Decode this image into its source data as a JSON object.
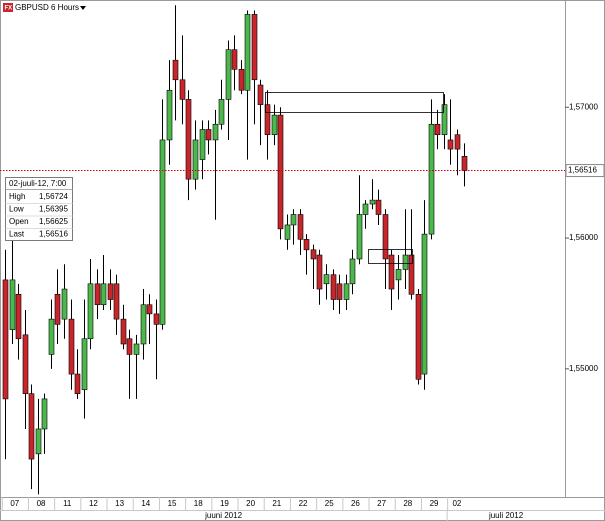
{
  "chart_data": {
    "type": "candlestick",
    "title": "GBPUSD 6 Hours",
    "categories": [
      "07",
      null,
      null,
      null,
      "08",
      null,
      null,
      null,
      "11",
      null,
      null,
      null,
      "12",
      null,
      null,
      null,
      "13",
      null,
      null,
      null,
      "14",
      null,
      null,
      null,
      "15",
      null,
      null,
      null,
      "18",
      null,
      null,
      null,
      "19",
      null,
      null,
      null,
      "20",
      null,
      null,
      null,
      "21",
      null,
      null,
      null,
      "22",
      null,
      null,
      null,
      "25",
      null,
      null,
      null,
      "26",
      null,
      null,
      null,
      "27",
      null,
      null,
      null,
      "28",
      null,
      null,
      null,
      "29",
      null,
      null,
      null,
      "02",
      null,
      null
    ],
    "x_groups": [
      "juuni 2012",
      "juuli 2012"
    ],
    "open": [
      1.5568,
      1.553,
      1.5557,
      1.5526,
      1.5481,
      1.5435,
      1.5454,
      1.5511,
      1.5557,
      1.5538,
      1.5538,
      1.5496,
      1.5484,
      1.5523,
      1.5565,
      1.5549,
      1.5565,
      1.5565,
      1.5538,
      1.5523,
      1.5511,
      1.5519,
      1.5549,
      1.5542,
      1.5534,
      1.5675,
      1.5736,
      1.5721,
      1.5706,
      1.5645,
      1.566,
      1.5683,
      1.5675,
      1.5687,
      1.5706,
      1.5744,
      1.5729,
      1.5713,
      1.5771,
      1.5717,
      1.5702,
      1.5679,
      1.5694,
      1.5599,
      1.561,
      1.5618,
      1.5599,
      1.5591,
      1.5587,
      1.5565,
      1.5572,
      1.5565,
      1.5553,
      1.5565,
      1.5584,
      1.5618,
      1.5626,
      1.5629,
      1.5618,
      1.5587,
      1.5568,
      1.5576,
      1.5587,
      1.5557,
      1.5496,
      1.5603,
      1.5687,
      1.5679,
      1.5675,
      1.5679,
      1.56625
    ],
    "high": [
      1.5591,
      1.5599,
      1.5565,
      1.5545,
      1.5488,
      1.5477,
      1.5481,
      1.5553,
      1.5576,
      1.558,
      1.5553,
      1.5515,
      1.5553,
      1.5584,
      1.5576,
      1.5587,
      1.5576,
      1.5572,
      1.5549,
      1.553,
      1.5526,
      1.5561,
      1.5557,
      1.5553,
      1.5706,
      1.5736,
      1.5778,
      1.5755,
      1.5713,
      1.569,
      1.569,
      1.569,
      1.5698,
      1.5721,
      1.5751,
      1.5755,
      1.5736,
      1.5774,
      1.5774,
      1.5721,
      1.5713,
      1.5702,
      1.57,
      1.5618,
      1.5622,
      1.5622,
      1.5603,
      1.5595,
      1.5591,
      1.558,
      1.5576,
      1.5572,
      1.5572,
      1.5591,
      1.5648,
      1.5629,
      1.5645,
      1.5637,
      1.5622,
      1.5591,
      1.5587,
      1.5622,
      1.5622,
      1.5561,
      1.5629,
      1.5706,
      1.5698,
      1.571,
      1.5706,
      1.5683,
      1.56724
    ],
    "low": [
      1.5431,
      1.5519,
      1.5507,
      1.5454,
      1.5408,
      1.5404,
      1.5435,
      1.55,
      1.5519,
      1.5523,
      1.5484,
      1.5477,
      1.5462,
      1.5515,
      1.5538,
      1.5545,
      1.5545,
      1.5526,
      1.5515,
      1.5477,
      1.5477,
      1.5507,
      1.5519,
      1.5492,
      1.553,
      1.5656,
      1.569,
      1.5687,
      1.5629,
      1.5637,
      1.5645,
      1.5664,
      1.5614,
      1.5683,
      1.5675,
      1.5713,
      1.571,
      1.566,
      1.5687,
      1.5671,
      1.566,
      1.5671,
      1.5599,
      1.5591,
      1.5595,
      1.5587,
      1.5572,
      1.5561,
      1.5549,
      1.5553,
      1.5545,
      1.5542,
      1.5545,
      1.5557,
      1.558,
      1.5607,
      1.5622,
      1.561,
      1.5561,
      1.5545,
      1.5553,
      1.5561,
      1.5553,
      1.5488,
      1.5484,
      1.5599,
      1.5668,
      1.5668,
      1.5656,
      1.5648,
      1.56395
    ],
    "close": [
      1.5477,
      1.5568,
      1.5523,
      1.5481,
      1.5431,
      1.5454,
      1.5477,
      1.5538,
      1.5534,
      1.5561,
      1.5496,
      1.5481,
      1.5523,
      1.5565,
      1.5549,
      1.5565,
      1.5553,
      1.5538,
      1.5519,
      1.5511,
      1.5519,
      1.5549,
      1.5542,
      1.5534,
      1.5675,
      1.5713,
      1.5721,
      1.5706,
      1.5645,
      1.5675,
      1.5683,
      1.5675,
      1.5687,
      1.5706,
      1.5744,
      1.5729,
      1.5713,
      1.5771,
      1.5721,
      1.5702,
      1.5679,
      1.5694,
      1.5607,
      1.561,
      1.5618,
      1.5599,
      1.5591,
      1.5584,
      1.5561,
      1.5572,
      1.5553,
      1.5553,
      1.5565,
      1.5584,
      1.5618,
      1.5626,
      1.5629,
      1.5618,
      1.5584,
      1.5561,
      1.5576,
      1.5587,
      1.5557,
      1.5492,
      1.5603,
      1.5687,
      1.5679,
      1.5702,
      1.5668,
      1.5668,
      1.56516
    ],
    "up_color": "#4cb84c",
    "down_color": "#c8262b",
    "ylim": [
      1.5402,
      1.5782
    ],
    "yticks": [
      {
        "value": 1.55,
        "label": "1,55000"
      },
      {
        "value": 1.56,
        "label": "1,56000"
      },
      {
        "value": 1.57,
        "label": "1,57000"
      }
    ],
    "last_price": {
      "value": 1.56516,
      "label": "1,56516"
    },
    "last_price_color": "#d40000",
    "info_box": {
      "title": "02-juuli-12, 7:00",
      "rows": [
        [
          "High",
          "1,56724"
        ],
        [
          "Low",
          "1,56395"
        ],
        [
          "Open",
          "1,56625"
        ],
        [
          "Last",
          "1,56516"
        ]
      ]
    }
  }
}
